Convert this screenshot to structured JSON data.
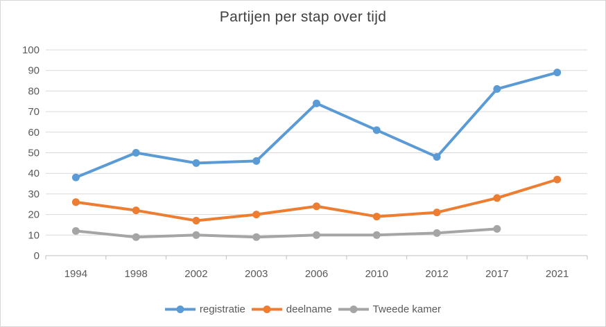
{
  "chart_data": {
    "type": "line",
    "title": "Partijen per stap over tijd",
    "categories": [
      "1994",
      "1998",
      "2002",
      "2003",
      "2006",
      "2010",
      "2012",
      "2017",
      "2021"
    ],
    "series": [
      {
        "name": "registratie",
        "color": "#5B9BD5",
        "values": [
          38,
          50,
          45,
          46,
          74,
          61,
          48,
          81,
          89
        ]
      },
      {
        "name": "deelname",
        "color": "#ED7D31",
        "values": [
          26,
          22,
          17,
          20,
          24,
          19,
          21,
          28,
          37
        ]
      },
      {
        "name": "Tweede kamer",
        "color": "#A5A5A5",
        "values": [
          12,
          9,
          10,
          9,
          10,
          10,
          11,
          13,
          null
        ]
      }
    ],
    "xlabel": "",
    "ylabel": "",
    "ylim": [
      0,
      100
    ],
    "ytick_step": 10,
    "yticks": [
      "0",
      "10",
      "20",
      "30",
      "40",
      "50",
      "60",
      "70",
      "80",
      "90",
      "100"
    ],
    "grid": "horizontal",
    "legend_position": "bottom"
  },
  "style": {
    "title_color": "#404040",
    "axis_label_color": "#595959",
    "gridline_color": "#D9D9D9",
    "axis_line_color": "#BFBFBF",
    "background_color": "#FFFFFF",
    "border_color": "#D7D7D7"
  }
}
